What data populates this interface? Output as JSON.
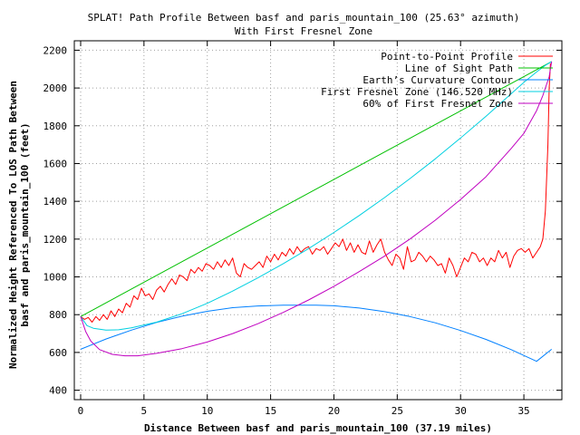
{
  "chart_data": {
    "type": "line",
    "title": "SPLAT! Path Profile Between basf and paris_mountain_100 (25.63° azimuth)",
    "subtitle": "With First Fresnel Zone",
    "xlabel": "Distance Between basf and paris_mountain_100 (37.19 miles)",
    "ylabel_line1": "Normalized Height Referenced To LOS Path Between",
    "ylabel_line2": "basf and paris_mountain_100 (feet)",
    "xlim": [
      -0.5,
      38.0
    ],
    "ylim": [
      350,
      2250
    ],
    "xticks": [
      0,
      5,
      10,
      15,
      20,
      25,
      30,
      35
    ],
    "yticks": [
      400,
      600,
      800,
      1000,
      1200,
      1400,
      1600,
      1800,
      2000,
      2200
    ],
    "grid": true,
    "legend_position": "top-right",
    "series": [
      {
        "name": "Point-to-Point Profile",
        "color": "#ff0000",
        "x": [
          0.0,
          0.3,
          0.6,
          0.9,
          1.2,
          1.5,
          1.8,
          2.1,
          2.4,
          2.7,
          3.0,
          3.3,
          3.6,
          3.9,
          4.2,
          4.5,
          4.8,
          5.1,
          5.4,
          5.7,
          6.0,
          6.3,
          6.6,
          6.9,
          7.2,
          7.5,
          7.8,
          8.1,
          8.4,
          8.7,
          9.0,
          9.3,
          9.6,
          9.9,
          10.2,
          10.5,
          10.8,
          11.1,
          11.4,
          11.7,
          12.0,
          12.3,
          12.6,
          12.9,
          13.2,
          13.5,
          13.8,
          14.1,
          14.4,
          14.7,
          15.0,
          15.3,
          15.6,
          15.9,
          16.2,
          16.5,
          16.8,
          17.1,
          17.4,
          17.7,
          18.0,
          18.3,
          18.6,
          18.9,
          19.2,
          19.5,
          19.8,
          20.1,
          20.4,
          20.7,
          21.0,
          21.3,
          21.6,
          21.9,
          22.2,
          22.5,
          22.8,
          23.1,
          23.4,
          23.7,
          24.0,
          24.3,
          24.6,
          24.9,
          25.2,
          25.5,
          25.8,
          26.1,
          26.4,
          26.7,
          27.0,
          27.3,
          27.6,
          27.9,
          28.2,
          28.5,
          28.8,
          29.1,
          29.4,
          29.7,
          30.0,
          30.3,
          30.6,
          30.9,
          31.2,
          31.5,
          31.8,
          32.1,
          32.4,
          32.7,
          33.0,
          33.3,
          33.6,
          33.9,
          34.2,
          34.5,
          34.8,
          35.1,
          35.4,
          35.7,
          36.0,
          36.3,
          36.5,
          36.7,
          36.9,
          37.0,
          37.1
        ],
        "y": [
          790,
          775,
          785,
          760,
          790,
          770,
          800,
          775,
          820,
          790,
          830,
          810,
          860,
          840,
          900,
          880,
          940,
          900,
          910,
          880,
          930,
          950,
          920,
          960,
          990,
          960,
          1010,
          1000,
          980,
          1040,
          1020,
          1050,
          1030,
          1070,
          1060,
          1040,
          1080,
          1050,
          1090,
          1060,
          1100,
          1020,
          1000,
          1070,
          1050,
          1040,
          1060,
          1080,
          1050,
          1110,
          1080,
          1120,
          1090,
          1130,
          1110,
          1150,
          1120,
          1160,
          1130,
          1150,
          1160,
          1120,
          1150,
          1140,
          1160,
          1120,
          1150,
          1180,
          1160,
          1200,
          1140,
          1180,
          1130,
          1170,
          1130,
          1120,
          1190,
          1130,
          1170,
          1200,
          1130,
          1090,
          1060,
          1120,
          1100,
          1040,
          1160,
          1080,
          1090,
          1130,
          1110,
          1080,
          1110,
          1090,
          1060,
          1070,
          1020,
          1100,
          1060,
          1000,
          1050,
          1100,
          1080,
          1130,
          1120,
          1080,
          1100,
          1060,
          1100,
          1080,
          1140,
          1100,
          1130,
          1050,
          1110,
          1140,
          1150,
          1130,
          1150,
          1100,
          1130,
          1160,
          1200,
          1350,
          1700,
          2000,
          2130
        ]
      },
      {
        "name": "Line of Sight Path",
        "color": "#00c000",
        "x": [
          0.0,
          37.19
        ],
        "y": [
          790,
          2140
        ]
      },
      {
        "name": "Earth’s Curvature Contour",
        "color": "#0080ff",
        "x": [
          0,
          2,
          4,
          6,
          8,
          10,
          12,
          14,
          16,
          18,
          18.6,
          20,
          22,
          24,
          26,
          28,
          30,
          32,
          34,
          36,
          37.19
        ],
        "y": [
          617,
          671,
          718,
          759,
          792,
          818,
          837,
          846,
          850,
          850,
          850,
          847,
          835,
          816,
          790,
          757,
          716,
          669,
          615,
          553,
          617
        ]
      },
      {
        "name": "First Fresnel Zone (146.520 MHz)",
        "color": "#00d0e0",
        "x": [
          0.0,
          0.5,
          1.0,
          2.0,
          3.0,
          4.0,
          6.0,
          8.0,
          10.0,
          12.0,
          14.0,
          16.0,
          18.0,
          20.0,
          22.0,
          24.0,
          26.0,
          28.0,
          30.0,
          32.0,
          34.0,
          35.0,
          36.0,
          36.7,
          37.19
        ],
        "y": [
          790,
          742,
          728,
          718,
          720,
          730,
          760,
          805,
          860,
          925,
          995,
          1070,
          1150,
          1235,
          1325,
          1420,
          1520,
          1625,
          1735,
          1850,
          1970,
          2030,
          2085,
          2120,
          2140
        ]
      },
      {
        "name": "60% of First Fresnel Zone",
        "color": "#c000c0",
        "x": [
          0.0,
          0.4,
          0.8,
          1.5,
          2.5,
          3.5,
          4.5,
          6.0,
          8.0,
          10.0,
          12.0,
          14.0,
          16.0,
          18.0,
          20.0,
          22.0,
          24.0,
          26.0,
          28.0,
          30.0,
          32.0,
          34.0,
          35.0,
          36.0,
          36.5,
          37.0,
          37.19
        ],
        "y": [
          790,
          710,
          660,
          615,
          590,
          582,
          582,
          595,
          620,
          655,
          700,
          752,
          812,
          878,
          950,
          1028,
          1110,
          1200,
          1300,
          1410,
          1530,
          1680,
          1760,
          1880,
          1960,
          2060,
          2140
        ]
      }
    ]
  }
}
